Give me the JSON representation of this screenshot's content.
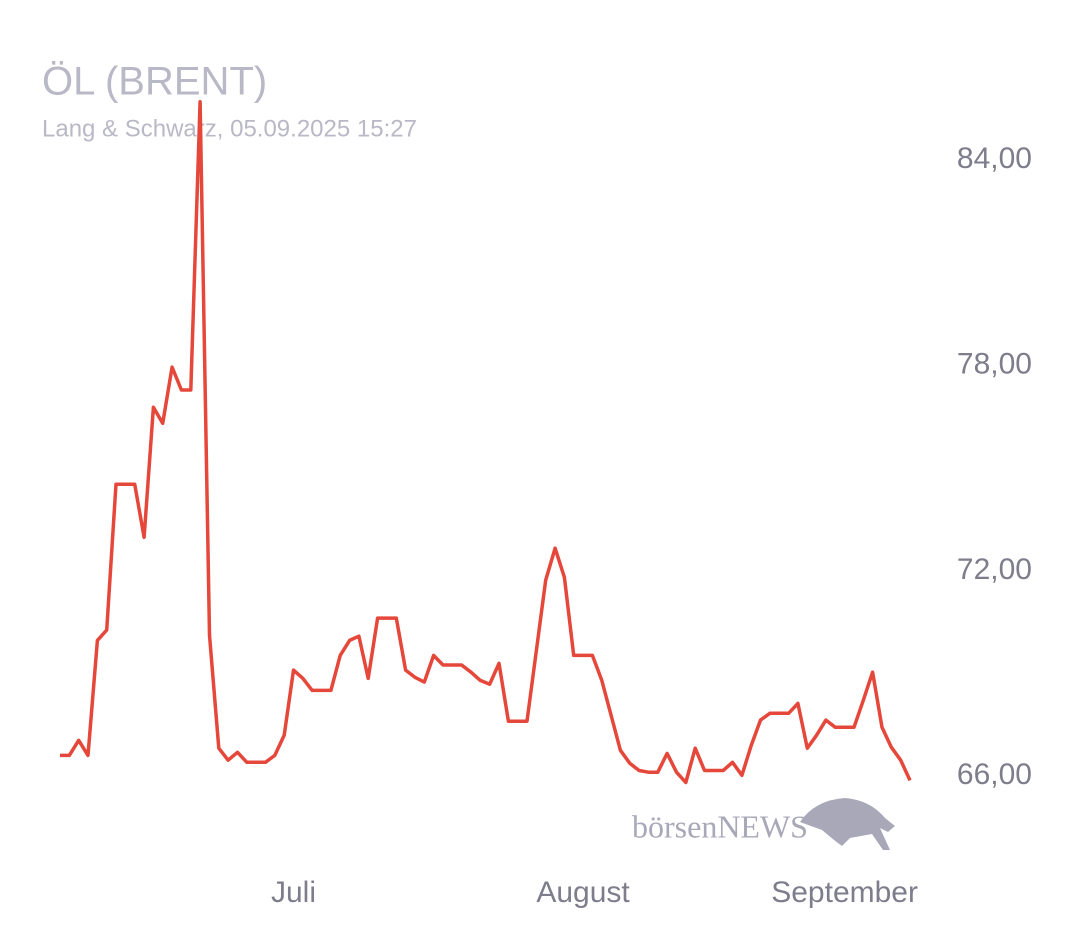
{
  "chart_data": {
    "type": "line",
    "title": "ÖL (BRENT)",
    "subtitle": "Lang & Schwarz, 05.09.2025 15:27",
    "watermark": "börsenNEWS",
    "categories": [
      null,
      null,
      null,
      null,
      null,
      null,
      null,
      null,
      null,
      null,
      null,
      null,
      null,
      null,
      null,
      null,
      null,
      null,
      null,
      null,
      null,
      null,
      null,
      null,
      null,
      "Juli",
      null,
      null,
      null,
      null,
      null,
      null,
      null,
      null,
      null,
      null,
      null,
      null,
      null,
      null,
      null,
      null,
      null,
      null,
      null,
      null,
      null,
      null,
      null,
      null,
      null,
      null,
      null,
      null,
      null,
      null,
      "August",
      null,
      null,
      null,
      null,
      null,
      null,
      null,
      null,
      null,
      null,
      null,
      null,
      null,
      null,
      null,
      null,
      null,
      null,
      null,
      null,
      null,
      null,
      null,
      null,
      null,
      null,
      null,
      "September",
      null,
      null,
      null,
      null,
      null,
      null,
      null
    ],
    "series": [
      {
        "name": "Öl (Brent)",
        "color": "#e5483a",
        "values": [
          66.61,
          66.61,
          67.05,
          66.61,
          69.97,
          70.27,
          74.53,
          74.53,
          74.53,
          72.98,
          76.78,
          76.31,
          77.95,
          77.28,
          77.28,
          85.7,
          70.12,
          66.82,
          66.47,
          66.7,
          66.41,
          66.41,
          66.41,
          66.61,
          67.2,
          69.1,
          68.86,
          68.51,
          68.51,
          68.51,
          69.53,
          69.97,
          70.09,
          68.86,
          70.62,
          70.62,
          70.62,
          69.1,
          68.89,
          68.75,
          69.53,
          69.25,
          69.25,
          69.25,
          69.04,
          68.8,
          68.69,
          69.3,
          67.61,
          67.61,
          67.61,
          69.68,
          71.73,
          72.66,
          71.81,
          69.53,
          69.53,
          69.53,
          68.8,
          67.78,
          66.76,
          66.38,
          66.17,
          66.12,
          66.12,
          66.67,
          66.12,
          65.82,
          66.82,
          66.17,
          66.17,
          66.17,
          66.41,
          66.03,
          66.9,
          67.64,
          67.84,
          67.84,
          67.84,
          68.13,
          66.82,
          67.2,
          67.64,
          67.43,
          67.43,
          67.43,
          68.22,
          69.04,
          67.43,
          66.85,
          66.47,
          65.88
        ]
      }
    ],
    "ylim": [
      65.6,
      85.75
    ],
    "yticks": [
      {
        "value": 66,
        "label": "66,00"
      },
      {
        "value": 72,
        "label": "72,00"
      },
      {
        "value": 78,
        "label": "78,00"
      },
      {
        "value": 84,
        "label": "84,00"
      }
    ],
    "grid": false
  }
}
